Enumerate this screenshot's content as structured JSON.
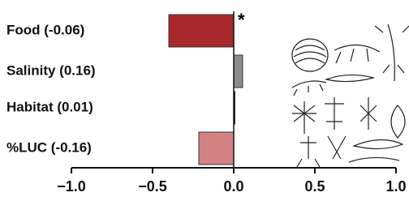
{
  "chart_data": {
    "type": "hbar",
    "categories": [
      "Food (-0.06)",
      "Salinity (0.16)",
      "Habitat (0.01)",
      "%LUC (-0.16)"
    ],
    "values": [
      -0.4,
      0.055,
      0.005,
      -0.215
    ],
    "colors": [
      "#a8282b",
      "#8c8c8c",
      "#222222",
      "#d48384"
    ],
    "annotation": "*",
    "xlim": [
      -1.0,
      1.0
    ],
    "xticks": [
      {
        "value": -1.0,
        "label": "−1.0"
      },
      {
        "value": -0.5,
        "label": "−0.5"
      },
      {
        "value": 0.0,
        "label": "0.0"
      },
      {
        "value": 0.5,
        "label": "0.5"
      },
      {
        "value": 1.0,
        "label": "1.0"
      }
    ]
  }
}
